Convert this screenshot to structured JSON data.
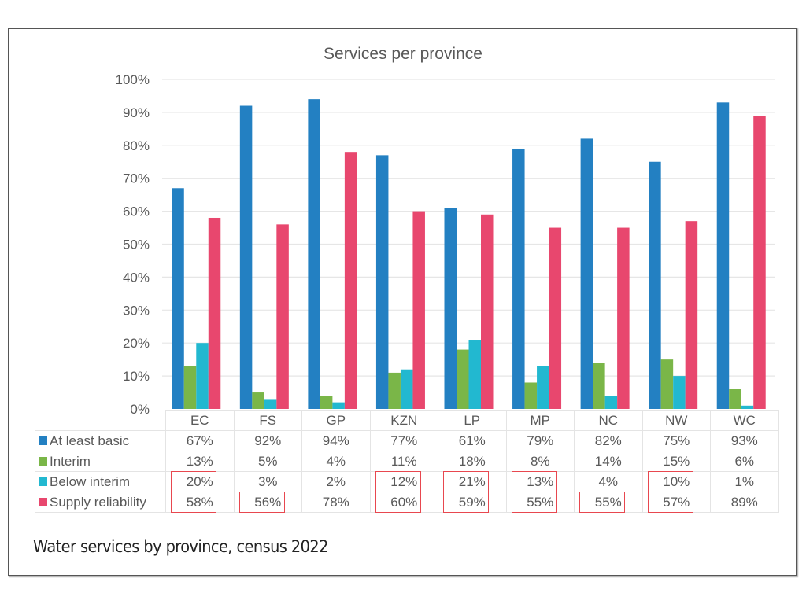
{
  "caption": "Water services by province, census 2022",
  "colors": {
    "at_least_basic": "#2380C2",
    "interim": "#7AB648",
    "below_interim": "#22B8D0",
    "supply_reliability": "#E8476E",
    "highlight": "#E8474F"
  },
  "chart_data": {
    "type": "bar",
    "title": "Services per province",
    "xlabel": "",
    "ylabel": "",
    "ylim": [
      0,
      100
    ],
    "y_ticks": [
      "0%",
      "10%",
      "20%",
      "30%",
      "40%",
      "50%",
      "60%",
      "70%",
      "80%",
      "90%",
      "100%"
    ],
    "grid": true,
    "legend_placement": "data-table-below",
    "categories": [
      "EC",
      "FS",
      "GP",
      "KZN",
      "LP",
      "MP",
      "NC",
      "NW",
      "WC"
    ],
    "series": [
      {
        "name": "At least basic",
        "key": "at_least_basic",
        "values": [
          67,
          92,
          94,
          77,
          61,
          79,
          82,
          75,
          93
        ]
      },
      {
        "name": "Interim",
        "key": "interim",
        "values": [
          13,
          5,
          4,
          11,
          18,
          8,
          14,
          15,
          6
        ]
      },
      {
        "name": "Below interim",
        "key": "below_interim",
        "values": [
          20,
          3,
          2,
          12,
          21,
          13,
          4,
          10,
          1
        ]
      },
      {
        "name": "Supply reliability",
        "key": "supply_reliability",
        "values": [
          58,
          56,
          78,
          60,
          59,
          55,
          55,
          57,
          89
        ]
      }
    ],
    "table_labels": [
      [
        "67%",
        "92%",
        "94%",
        "77%",
        "61%",
        "79%",
        "82%",
        "75%",
        "93%"
      ],
      [
        "13%",
        "5%",
        "4%",
        "11%",
        "18%",
        "8%",
        "14%",
        "15%",
        "6%"
      ],
      [
        "20%",
        "3%",
        "2%",
        "12%",
        "21%",
        "13%",
        "4%",
        "10%",
        "1%"
      ],
      [
        "58%",
        "56%",
        "78%",
        "60%",
        "59%",
        "55%",
        "55%",
        "57%",
        "89%"
      ]
    ],
    "highlighted_cells": [
      {
        "series": "Below interim",
        "categories": [
          "EC",
          "KZN",
          "LP",
          "MP",
          "NW"
        ]
      },
      {
        "series": "Supply reliability",
        "categories": [
          "EC",
          "FS",
          "KZN",
          "LP",
          "MP",
          "NC",
          "NW"
        ]
      }
    ]
  }
}
